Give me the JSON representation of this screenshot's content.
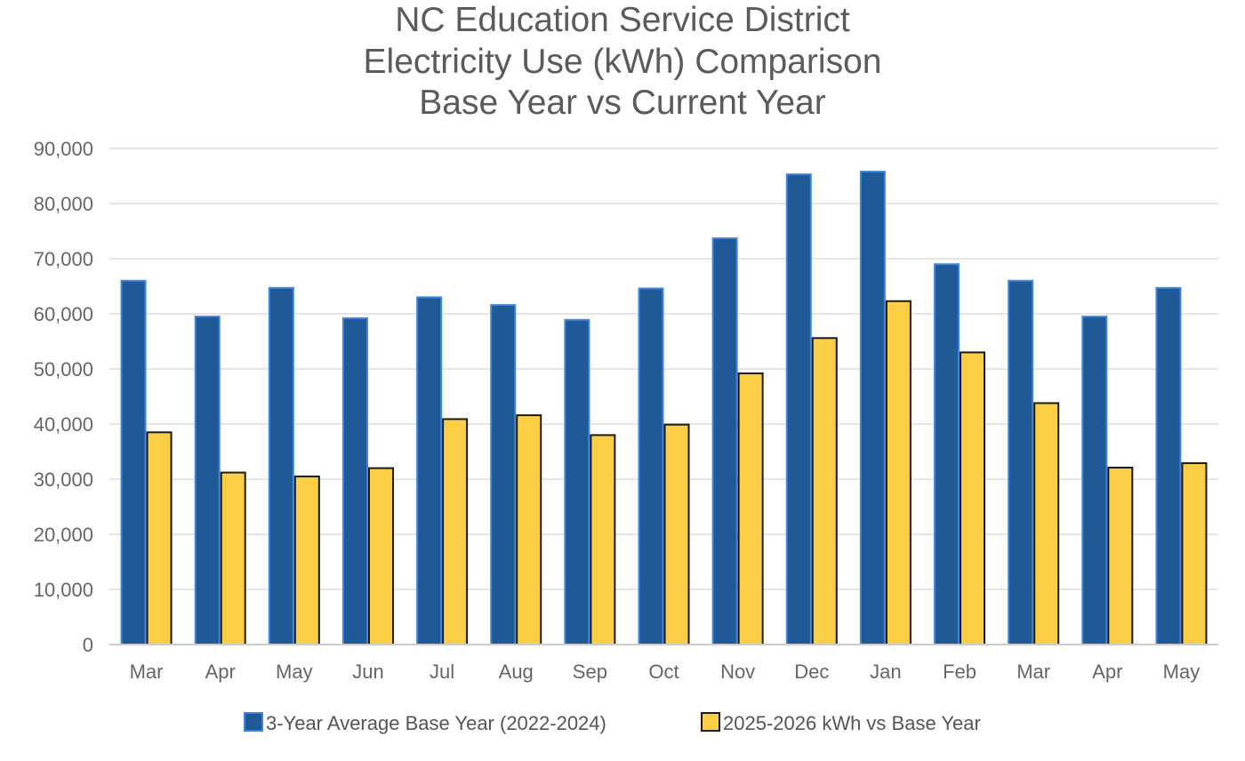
{
  "chart_data": {
    "type": "bar",
    "title": "NC Education Service District",
    "subtitle_lines": [
      "Electricity Use (kWh) Comparison",
      "Base Year vs Current Year"
    ],
    "xlabel": "",
    "ylabel": "",
    "categories": [
      "Mar",
      "Apr",
      "May",
      "Jun",
      "Jul",
      "Aug",
      "Sep",
      "Oct",
      "Nov",
      "Dec",
      "Jan",
      "Feb",
      "Mar",
      "Apr",
      "May"
    ],
    "series": [
      {
        "name": "3-Year Average Base Year (2022-2024)",
        "color": "#1f5a96",
        "edge_color": "#3e86e0",
        "values": [
          66000,
          59500,
          64700,
          59200,
          63000,
          61600,
          58900,
          64600,
          73700,
          85300,
          85800,
          69000,
          66000,
          59500,
          64700
        ]
      },
      {
        "name": "2025-2026 kWh vs Base Year",
        "color": "#fbcf45",
        "edge_color": "#1a1a1a",
        "values": [
          38500,
          31200,
          30500,
          32000,
          40900,
          41600,
          38000,
          39900,
          49200,
          55600,
          62300,
          53000,
          43800,
          32100,
          32900
        ]
      }
    ],
    "ylim": [
      0,
      90000
    ],
    "yticks": [
      "0",
      "10,000",
      "20,000",
      "30,000",
      "40,000",
      "50,000",
      "60,000",
      "70,000",
      "80,000",
      "90,000"
    ],
    "grid": true,
    "legend_position": "bottom"
  }
}
